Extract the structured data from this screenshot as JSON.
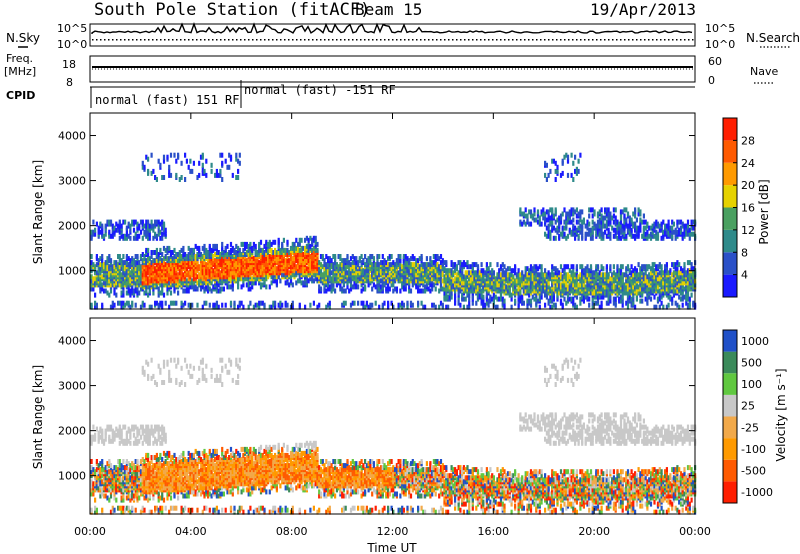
{
  "header": {
    "station": "South Pole Station (fitACF)",
    "beam": "Beam 15",
    "date": "19/Apr/2013"
  },
  "left_labels": {
    "nsky": "N.Sky",
    "freq": "Freq.",
    "freq_unit": "[MHz]",
    "cpid": "CPID"
  },
  "right_labels": {
    "nsearch": "N.Search",
    "nave": "Nave"
  },
  "noise_axis": {
    "left_top": "10^5",
    "left_bottom": "10^0",
    "right_top": "10^5",
    "right_bottom": "10^0"
  },
  "freq_axis": {
    "left_ticks": [
      "18",
      "8"
    ],
    "right_ticks": [
      "60",
      "0"
    ]
  },
  "cpid_segments": [
    {
      "label": "normal (fast) 151 RF",
      "start_hour": 0,
      "end_hour": 6
    },
    {
      "label": "normal (fast) -151 RF",
      "start_hour": 6,
      "end_hour": 24
    }
  ],
  "colors": {
    "power_scale": [
      "#1a1aff",
      "#2a50c8",
      "#2e8a8a",
      "#4aa060",
      "#e6d200",
      "#ff9a00",
      "#ff5a00",
      "#ff1e00"
    ],
    "velocity_scale": [
      "#ff1e00",
      "#ff5a00",
      "#ff9a00",
      "#f2a94a",
      "#c8c8c8",
      "#60c840",
      "#3a8a5a",
      "#2050c8"
    ]
  },
  "chart_data": [
    {
      "type": "heatmap",
      "xlabel": "",
      "ylabel": "Slant Range [km]",
      "xlim": [
        0,
        24
      ],
      "ylim": [
        150,
        4500
      ],
      "y_ticks": [
        1000,
        2000,
        3000,
        4000
      ],
      "colorbar": {
        "label": "Power [dB]",
        "ticks": [
          "4",
          "8",
          "12",
          "16",
          "20",
          "24",
          "28"
        ]
      }
    },
    {
      "type": "heatmap",
      "xlabel": "Time UT",
      "ylabel": "Slant Range [km]",
      "xlim": [
        0,
        24
      ],
      "ylim": [
        150,
        4500
      ],
      "x_tick_labels": [
        "00:00",
        "04:00",
        "08:00",
        "12:00",
        "16:00",
        "20:00",
        "00:00"
      ],
      "y_ticks": [
        1000,
        2000,
        3000,
        4000
      ],
      "colorbar": {
        "label": "Velocity [m s⁻¹]",
        "ticks": [
          "1000",
          "500",
          "100",
          "25",
          "-25",
          "-100",
          "-500",
          "-1000"
        ]
      }
    }
  ]
}
